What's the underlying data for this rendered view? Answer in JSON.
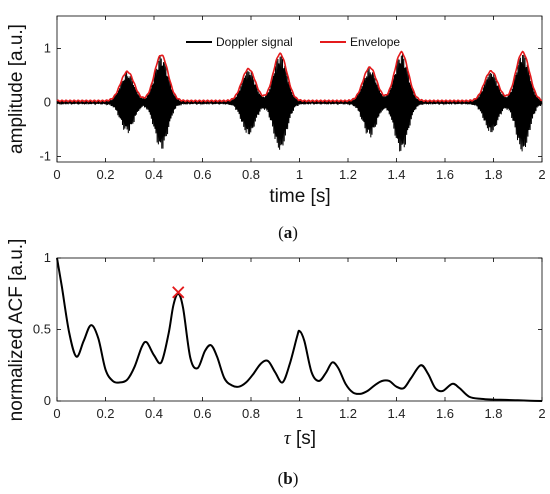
{
  "chart_data": [
    {
      "type": "line",
      "panel_label": "a",
      "xlabel": "time [s]",
      "ylabel": "amplitude [a.u.]",
      "xlim": [
        0,
        2
      ],
      "ylim": [
        -1.1,
        1.6
      ],
      "xticks": [
        "0",
        "0.2",
        "0.4",
        "0.6",
        "0.8",
        "1",
        "1.2",
        "1.4",
        "1.6",
        "1.8",
        "2"
      ],
      "yticks": [
        "-1",
        "0",
        "1"
      ],
      "legend": {
        "placement": "top-center"
      },
      "series": [
        {
          "name": "Doppler signal",
          "color": "#000000",
          "description_points": "oscillating bursts; envelope peaks listed below"
        },
        {
          "name": "Envelope",
          "color": "#e41a1c",
          "peaks": [
            {
              "x": 0.29,
              "y": 0.57
            },
            {
              "x": 0.43,
              "y": 0.88
            },
            {
              "x": 0.79,
              "y": 0.62
            },
            {
              "x": 0.92,
              "y": 0.9
            },
            {
              "x": 1.29,
              "y": 0.65
            },
            {
              "x": 1.42,
              "y": 0.93
            },
            {
              "x": 1.79,
              "y": 0.58
            },
            {
              "x": 1.92,
              "y": 0.93
            }
          ],
          "baseline": 0.03
        }
      ]
    },
    {
      "type": "line",
      "panel_label": "b",
      "xlabel_symbol": "τ",
      "xlabel_unit": " [s]",
      "ylabel": "normalized ACF [a.u.]",
      "xlim": [
        0,
        2
      ],
      "ylim": [
        0,
        1
      ],
      "xticks": [
        "0",
        "0.2",
        "0.4",
        "0.6",
        "0.8",
        "1",
        "1.2",
        "1.4",
        "1.6",
        "1.8",
        "2"
      ],
      "yticks": [
        "0",
        "0.5",
        "1"
      ],
      "series": [
        {
          "color": "#000000",
          "x": [
            0,
            0.02,
            0.05,
            0.08,
            0.11,
            0.14,
            0.17,
            0.2,
            0.23,
            0.26,
            0.29,
            0.32,
            0.35,
            0.37,
            0.4,
            0.43,
            0.46,
            0.48,
            0.5,
            0.52,
            0.55,
            0.58,
            0.61,
            0.635,
            0.66,
            0.69,
            0.72,
            0.75,
            0.78,
            0.81,
            0.84,
            0.87,
            0.9,
            0.93,
            0.96,
            0.99,
            1.0,
            1.02,
            1.05,
            1.08,
            1.11,
            1.135,
            1.16,
            1.19,
            1.22,
            1.25,
            1.28,
            1.31,
            1.34,
            1.37,
            1.4,
            1.43,
            1.46,
            1.5,
            1.53,
            1.56,
            1.59,
            1.63,
            1.66,
            1.7,
            1.75,
            1.8,
            1.85,
            1.9,
            1.95,
            2.0
          ],
          "y": [
            1.0,
            0.8,
            0.48,
            0.31,
            0.42,
            0.53,
            0.44,
            0.22,
            0.14,
            0.13,
            0.15,
            0.24,
            0.38,
            0.41,
            0.32,
            0.27,
            0.47,
            0.67,
            0.75,
            0.65,
            0.3,
            0.23,
            0.35,
            0.39,
            0.31,
            0.16,
            0.11,
            0.1,
            0.13,
            0.19,
            0.26,
            0.28,
            0.2,
            0.13,
            0.26,
            0.45,
            0.49,
            0.42,
            0.2,
            0.14,
            0.2,
            0.27,
            0.23,
            0.12,
            0.06,
            0.05,
            0.07,
            0.11,
            0.14,
            0.14,
            0.1,
            0.09,
            0.16,
            0.25,
            0.19,
            0.09,
            0.07,
            0.12,
            0.09,
            0.03,
            0.015,
            0.01,
            0.008,
            0.005,
            0.002,
            0.0
          ]
        }
      ],
      "annotations": [
        {
          "type": "marker",
          "shape": "x",
          "color": "#e41a1c",
          "x": 0.5,
          "y": 0.76
        }
      ]
    }
  ]
}
